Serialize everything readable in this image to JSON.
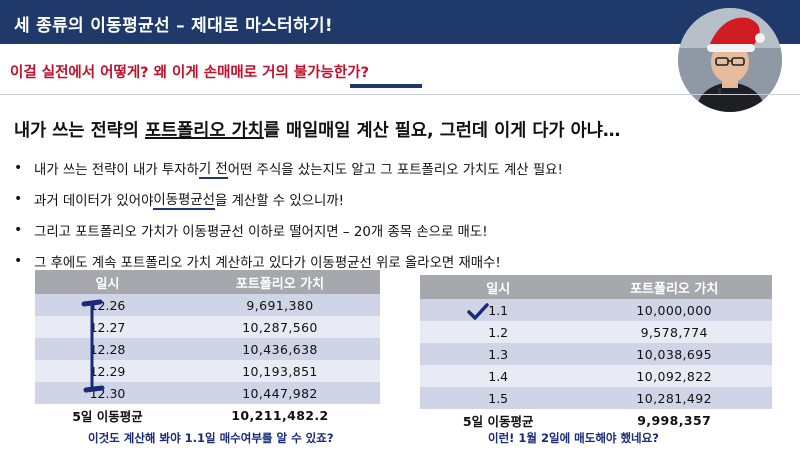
{
  "slide": {
    "title": "세 종류의 이동평균선 – 제대로 마스터하기!",
    "subtitle": "이걸 실전에서 어떻게? 왜 이게 손매매로 거의 불가능한가?",
    "headline": {
      "part1": "내가 쓰는 전략의 ",
      "emphasis": "포트폴리오 가치",
      "part2": "를 매일매일 계산 필요, 그런데 이게 다가 아냐…"
    },
    "bullets": [
      {
        "before": "내가 쓰는 전략이 내가 투자하",
        "underlined": "기 전",
        "after": " 어떤 주식을 샀는지도 알고 그 포트폴리오 가치도 계산 필요!"
      },
      {
        "before": "과거 데이터가 있어야 ",
        "underlined": "이동평균선",
        "after": "을 계산할 수 있으니까!"
      },
      {
        "before": "그리고 포트폴리오 가치가 이동평균선 이하로 떨어지면 – 20개 종목 손으로 매도!",
        "underlined": "",
        "after": ""
      },
      {
        "before": "그 후에도 계속 포트폴리오 가치 계산하고 있다가 이동평균선 위로 올라오면 재매수!",
        "underlined": "",
        "after": ""
      }
    ]
  },
  "left_table": {
    "headers": [
      "일시",
      "포트폴리오 가치"
    ],
    "rows": [
      {
        "date": "12.26",
        "value": "9,691,380"
      },
      {
        "date": "12.27",
        "value": "10,287,560"
      },
      {
        "date": "12.28",
        "value": "10,436,638"
      },
      {
        "date": "12.29",
        "value": "10,193,851"
      },
      {
        "date": "12.30",
        "value": "10,447,982"
      }
    ],
    "avg_label": "5일 이동평균",
    "avg_value": "10,211,482.2",
    "note": "이것도 계산해 봐야 1.1일 매수여부를 알 수 있죠?"
  },
  "right_table": {
    "headers": [
      "일시",
      "포트폴리오 가치"
    ],
    "rows": [
      {
        "date": "1.1",
        "value": "10,000,000"
      },
      {
        "date": "1.2",
        "value": "9,578,774"
      },
      {
        "date": "1.3",
        "value": "10,038,695"
      },
      {
        "date": "1.4",
        "value": "10,092,822"
      },
      {
        "date": "1.5",
        "value": "10,281,492"
      }
    ],
    "avg_label": "5일 이동평균",
    "avg_value": "9,998,357",
    "note": "이런! 1월 2일에 매도해야 했네요?"
  },
  "colors": {
    "title_bar": "#1f3a6a",
    "subtitle_text": "#c0102a",
    "note_text": "#1a2a78",
    "pen_mark": "#1a2a78"
  }
}
